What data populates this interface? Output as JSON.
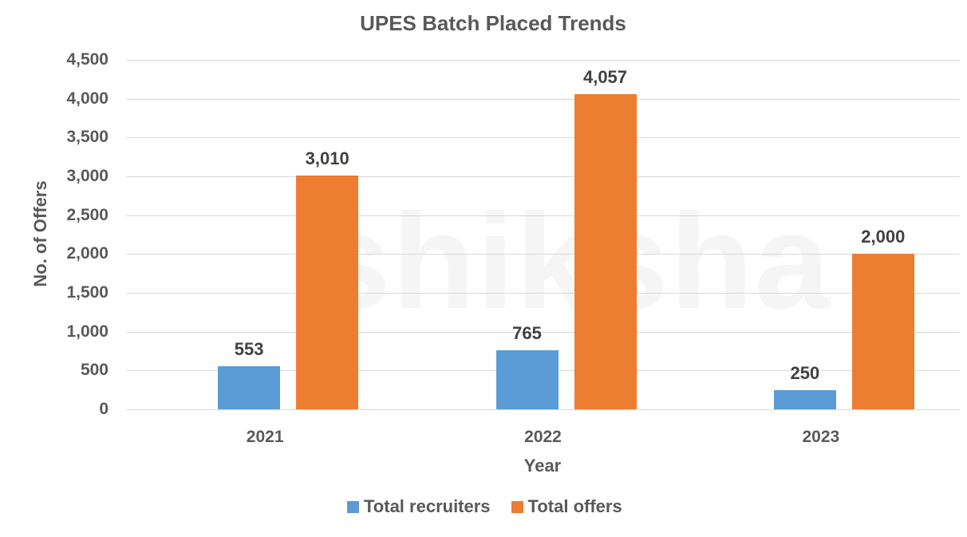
{
  "chart_data": {
    "type": "bar",
    "title": "UPES Batch Placed Trends",
    "xlabel": "Year",
    "ylabel": "No. of Offers",
    "categories": [
      "2021",
      "2022",
      "2023"
    ],
    "series": [
      {
        "name": "Total recruiters",
        "color": "#5b9bd5",
        "values": [
          553,
          765,
          250
        ],
        "labels": [
          "553",
          "765",
          "250"
        ]
      },
      {
        "name": "Total offers",
        "color": "#ed7d31",
        "values": [
          3010,
          4057,
          2000
        ],
        "labels": [
          "3,010",
          "4,057",
          "2,000"
        ]
      }
    ],
    "ylim": [
      0,
      4500
    ],
    "yticks": [
      "0",
      "500",
      "1,000",
      "1,500",
      "2,000",
      "2,500",
      "3,000",
      "3,500",
      "4,000",
      "4,500"
    ],
    "grid": true,
    "legend_position": "bottom"
  },
  "watermark": "shiksha"
}
